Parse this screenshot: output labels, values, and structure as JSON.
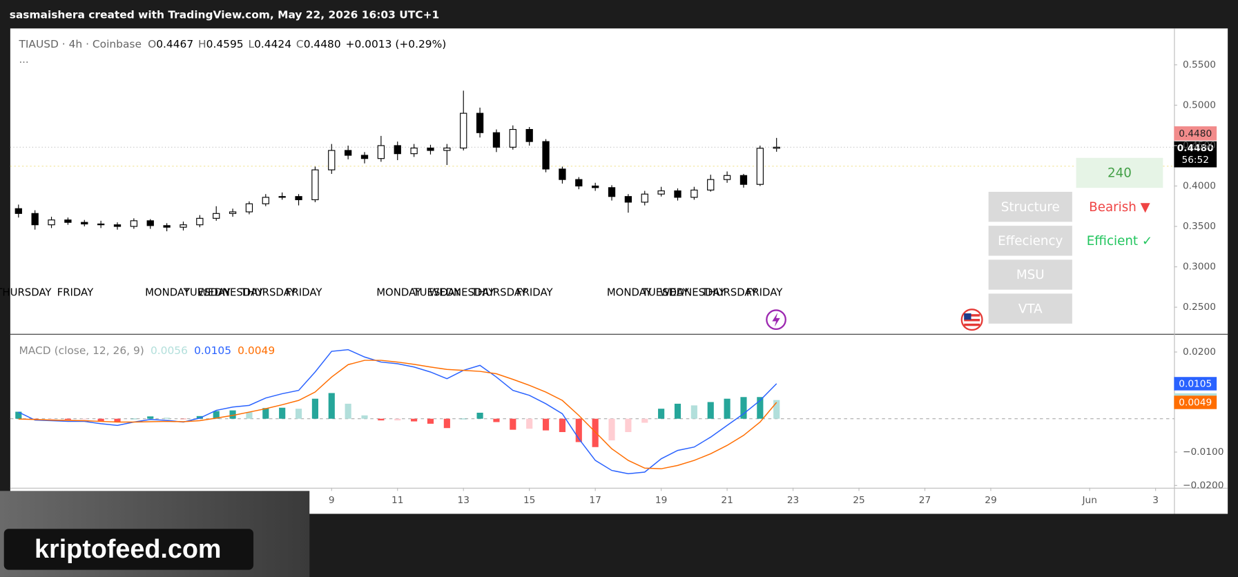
{
  "header": {
    "attribution": "sasmaishera created with TradingView.com, May 22, 2026 16:03 UTC+1"
  },
  "chart_data": [
    {
      "type": "candlestick",
      "symbol": "TIAUSD · 4h · Coinbase",
      "ohlc_legend": [
        {
          "label": "O",
          "value": "0.4467"
        },
        {
          "label": "H",
          "value": "0.4595"
        },
        {
          "label": "L",
          "value": "0.4424"
        },
        {
          "label": "C",
          "value": "0.4480"
        }
      ],
      "change": "+0.0013 (+0.29%)",
      "more": "···",
      "x": [
        -0.5,
        0,
        0.5,
        1,
        1.5,
        2,
        2.5,
        3,
        3.5,
        4,
        4.5,
        5,
        5.5,
        6,
        6.5,
        7,
        7.5,
        8,
        8.5,
        9,
        9.5,
        10,
        10.5,
        11,
        11.5,
        12,
        12.5,
        13,
        13.5,
        14,
        14.5,
        15,
        15.5,
        16,
        16.5,
        17,
        17.5,
        18,
        18.5,
        19,
        19.5,
        20,
        20.5,
        21,
        21.5,
        22,
        22.5
      ],
      "open": [
        0.372,
        0.366,
        0.352,
        0.358,
        0.355,
        0.353,
        0.352,
        0.35,
        0.357,
        0.351,
        0.349,
        0.352,
        0.36,
        0.366,
        0.368,
        0.378,
        0.386,
        0.387,
        0.383,
        0.42,
        0.444,
        0.438,
        0.434,
        0.45,
        0.44,
        0.447,
        0.444,
        0.447,
        0.49,
        0.466,
        0.448,
        0.47,
        0.455,
        0.421,
        0.408,
        0.4,
        0.398,
        0.387,
        0.38,
        0.39,
        0.394,
        0.386,
        0.395,
        0.408,
        0.413,
        0.402,
        0.4467
      ],
      "high": [
        0.377,
        0.37,
        0.362,
        0.361,
        0.358,
        0.357,
        0.355,
        0.36,
        0.359,
        0.354,
        0.356,
        0.364,
        0.375,
        0.372,
        0.381,
        0.39,
        0.392,
        0.39,
        0.424,
        0.452,
        0.45,
        0.442,
        0.462,
        0.455,
        0.452,
        0.451,
        0.452,
        0.518,
        0.497,
        0.47,
        0.475,
        0.473,
        0.458,
        0.424,
        0.411,
        0.404,
        0.401,
        0.39,
        0.394,
        0.399,
        0.397,
        0.399,
        0.414,
        0.418,
        0.415,
        0.45,
        0.4595
      ],
      "low": [
        0.361,
        0.346,
        0.348,
        0.352,
        0.35,
        0.348,
        0.346,
        0.347,
        0.347,
        0.344,
        0.345,
        0.349,
        0.357,
        0.362,
        0.365,
        0.375,
        0.383,
        0.376,
        0.38,
        0.415,
        0.433,
        0.428,
        0.43,
        0.432,
        0.436,
        0.439,
        0.426,
        0.444,
        0.46,
        0.442,
        0.445,
        0.45,
        0.417,
        0.403,
        0.396,
        0.394,
        0.382,
        0.367,
        0.376,
        0.387,
        0.382,
        0.383,
        0.393,
        0.404,
        0.398,
        0.4,
        0.4424
      ],
      "close": [
        0.366,
        0.352,
        0.358,
        0.355,
        0.353,
        0.352,
        0.35,
        0.357,
        0.351,
        0.349,
        0.352,
        0.36,
        0.366,
        0.368,
        0.378,
        0.386,
        0.387,
        0.383,
        0.42,
        0.444,
        0.438,
        0.434,
        0.45,
        0.44,
        0.447,
        0.444,
        0.447,
        0.49,
        0.466,
        0.448,
        0.47,
        0.455,
        0.421,
        0.408,
        0.4,
        0.398,
        0.387,
        0.38,
        0.39,
        0.394,
        0.386,
        0.395,
        0.408,
        0.413,
        0.402,
        0.4467,
        0.448
      ],
      "up_color": "#ffffff",
      "down_color": "#000000",
      "border_color": "#000000",
      "xlim": [
        -0.75,
        34.56
      ],
      "ylim": [
        0.217,
        0.594
      ],
      "yticks": [
        {
          "value": 0.55,
          "label": "0.5500"
        },
        {
          "value": 0.5,
          "label": "0.5000"
        },
        {
          "value": 0.45,
          "label": "0.4500"
        },
        {
          "value": 0.4,
          "label": "0.4000"
        },
        {
          "value": 0.35,
          "label": "0.3500"
        },
        {
          "value": 0.3,
          "label": "0.3000"
        },
        {
          "value": 0.25,
          "label": "0.2500"
        }
      ],
      "grid": false,
      "session_labels": [
        {
          "x": -0.34,
          "text": "THURSDAY"
        },
        {
          "x": 1.22,
          "text": "FRIDAY"
        },
        {
          "x": 4.02,
          "text": "MONDAY"
        },
        {
          "x": 5.22,
          "text": "TUESDAY"
        },
        {
          "x": 5.93,
          "text": "WEDNESDAY"
        },
        {
          "x": 7.08,
          "text": "THURSDAY"
        },
        {
          "x": 8.16,
          "text": "FRIDAY"
        },
        {
          "x": 11.04,
          "text": "MONDAY"
        },
        {
          "x": 12.19,
          "text": "TUESDAY"
        },
        {
          "x": 12.95,
          "text": "WEDNESDAY"
        },
        {
          "x": 14.08,
          "text": "THURSDAY"
        },
        {
          "x": 15.16,
          "text": "FRIDAY"
        },
        {
          "x": 18.03,
          "text": "MONDAY"
        },
        {
          "x": 19.13,
          "text": "TUESDAY"
        },
        {
          "x": 19.95,
          "text": "WEDNESDAY"
        },
        {
          "x": 21.07,
          "text": "THURSDAY"
        },
        {
          "x": 22.13,
          "text": "FRIDAY"
        }
      ]
    },
    {
      "type": "macd",
      "title": "MACD (close, 12, 26, 9)",
      "x": [
        -0.5,
        0,
        0.5,
        1,
        1.5,
        2,
        2.5,
        3,
        3.5,
        4,
        4.5,
        5,
        5.5,
        6,
        6.5,
        7,
        7.5,
        8,
        8.5,
        9,
        9.5,
        10,
        10.5,
        11,
        11.5,
        12,
        12.5,
        13,
        13.5,
        14,
        14.5,
        15,
        15.5,
        16,
        16.5,
        17,
        17.5,
        18,
        18.5,
        19,
        19.5,
        20,
        20.5,
        21,
        21.5,
        22,
        22.5
      ],
      "histogram": {
        "colors": [
          "#26a69a",
          "#b2dfdb",
          "#ff5252",
          "#ffcdd2"
        ],
        "values": [
          0.0021,
          -0.0002,
          -0.0002,
          -0.0003,
          -0.0002,
          -0.0007,
          -0.001,
          0,
          0.0007,
          0.0003,
          -0.0001,
          0.0008,
          0.0023,
          0.0025,
          0.002,
          0.0032,
          0.0033,
          0.003,
          0.006,
          0.0077,
          0.0045,
          0.001,
          -0.0005,
          -0.0005,
          -0.0008,
          -0.0015,
          -0.0028,
          0,
          0.0018,
          -0.001,
          -0.0033,
          -0.003,
          -0.0035,
          -0.004,
          -0.007,
          -0.0085,
          -0.0065,
          -0.004,
          -0.0012,
          0.003,
          0.0045,
          0.004,
          0.005,
          0.006,
          0.0065,
          0.0065,
          0.0056
        ]
      },
      "series": [
        {
          "color": "#2962ff",
          "values": [
            0.002,
            -0.0004,
            -0.0006,
            -0.0008,
            -0.0008,
            -0.0015,
            -0.002,
            -0.001,
            -0.0002,
            -0.0005,
            -0.001,
            0.0002,
            0.0025,
            0.0035,
            0.004,
            0.0062,
            0.0075,
            0.0085,
            0.014,
            0.0202,
            0.0207,
            0.0185,
            0.017,
            0.0165,
            0.0155,
            0.014,
            0.012,
            0.0145,
            0.016,
            0.0125,
            0.0085,
            0.007,
            0.0045,
            0.0015,
            -0.006,
            -0.0125,
            -0.0155,
            -0.0165,
            -0.016,
            -0.012,
            -0.0095,
            -0.0085,
            -0.0055,
            -0.002,
            0.0015,
            0.0055,
            0.0105
          ]
        },
        {
          "color": "#ff6d00",
          "values": [
            -0.0001,
            -0.0002,
            -0.0004,
            -0.0005,
            -0.0006,
            -0.0008,
            -0.001,
            -0.001,
            -0.0009,
            -0.0008,
            -0.0009,
            -0.0006,
            0.0002,
            0.001,
            0.002,
            0.003,
            0.0042,
            0.0055,
            0.008,
            0.0125,
            0.0162,
            0.0175,
            0.0175,
            0.017,
            0.0163,
            0.0155,
            0.0148,
            0.0145,
            0.0142,
            0.0135,
            0.0118,
            0.01,
            0.008,
            0.0055,
            0.001,
            -0.004,
            -0.009,
            -0.0125,
            -0.0148,
            -0.015,
            -0.014,
            -0.0125,
            -0.0105,
            -0.008,
            -0.005,
            -0.001,
            0.0049
          ]
        }
      ],
      "xlim": [
        -0.75,
        34.56
      ],
      "ylim": [
        -0.0207,
        0.0252
      ],
      "yticks": [
        {
          "value": 0.02,
          "label": "0.0200"
        },
        {
          "value": -0.01,
          "label": "−0.0100"
        },
        {
          "value": -0.02,
          "label": "−0.0200"
        }
      ],
      "xticks": [
        9,
        11,
        13,
        15,
        17,
        19,
        21,
        23,
        25,
        27,
        29,
        {
          "value": 32,
          "label": "Jun"
        },
        {
          "value": 34,
          "label": "3"
        }
      ]
    }
  ],
  "price_badges": [
    "0.4480",
    "0.4480",
    "56:52"
  ],
  "panel": {
    "timeframe": "240",
    "rows": [
      {
        "label": "Structure",
        "value": "Bearish ▼"
      },
      {
        "label": "Effeciency",
        "value": "Efficient ✓"
      },
      {
        "label": "MSU"
      },
      {
        "label": "VTA"
      }
    ]
  },
  "watermark": "kriptofeed.com"
}
